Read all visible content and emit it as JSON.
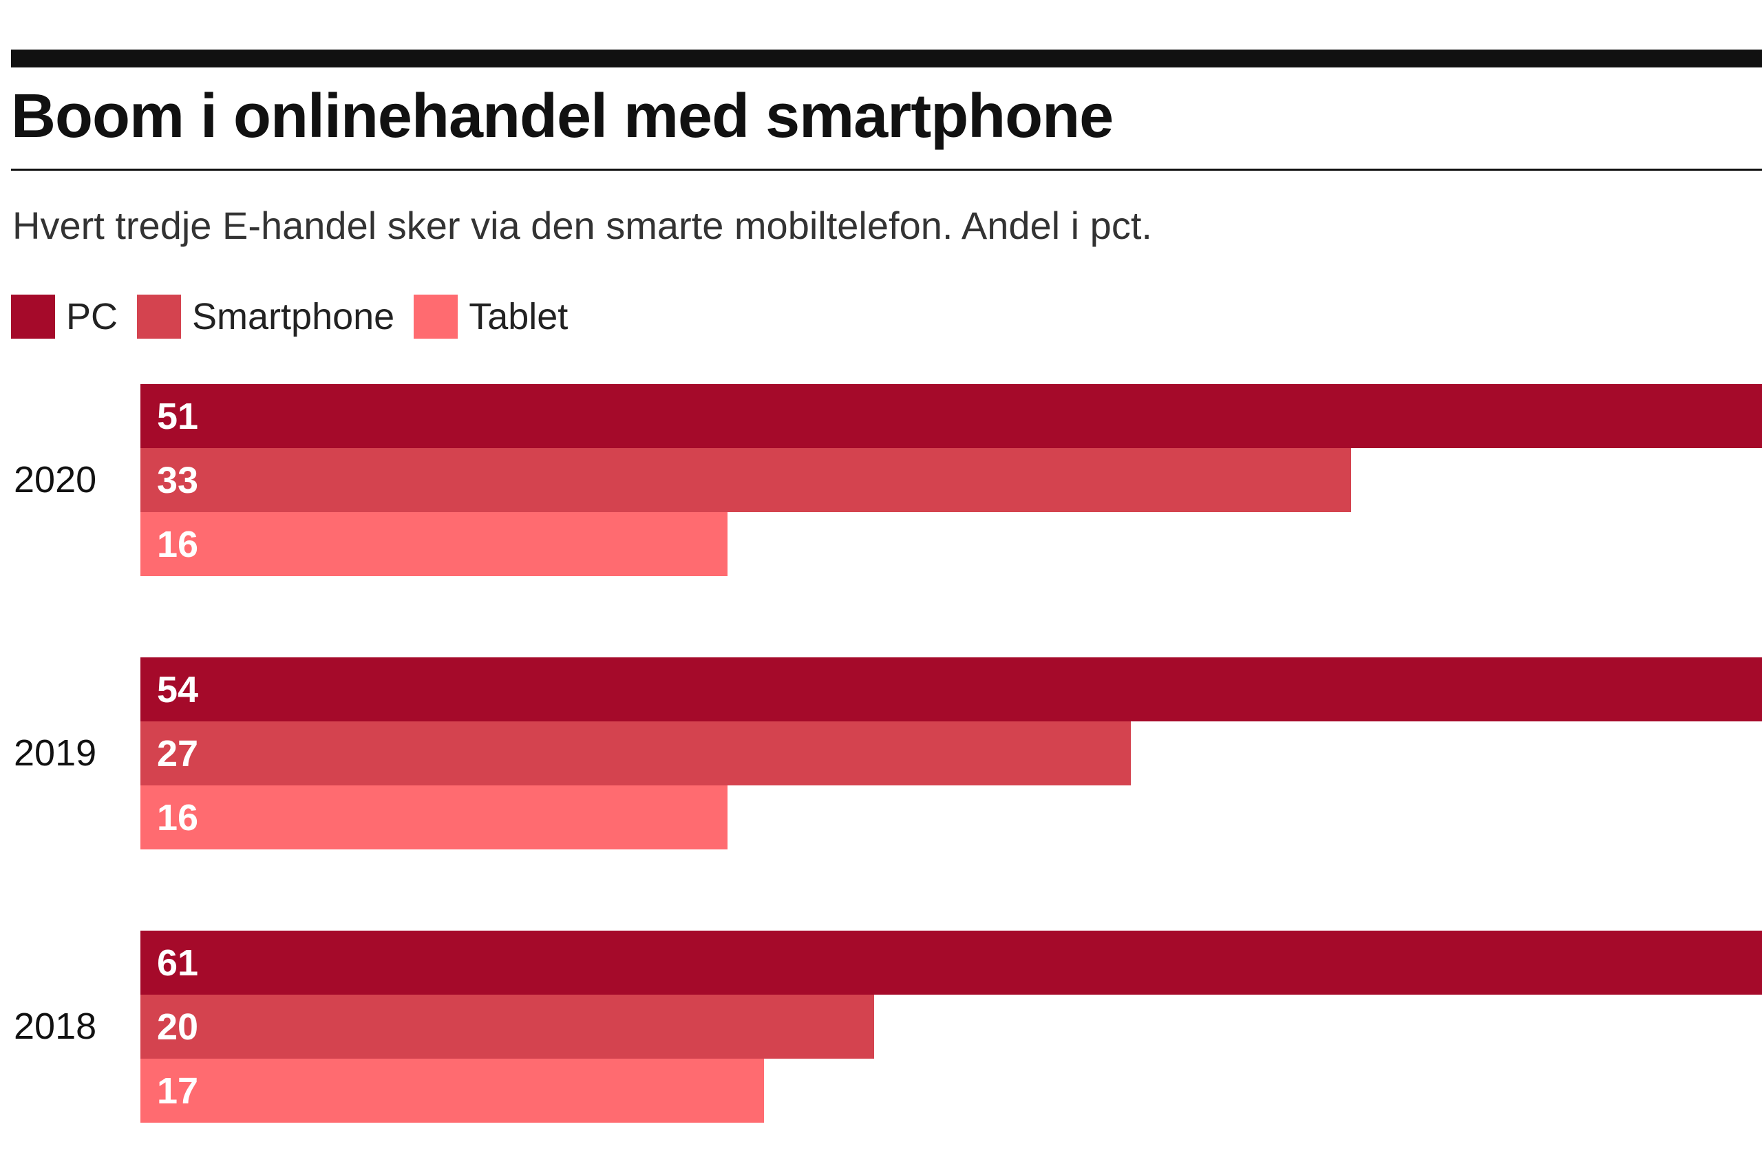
{
  "chart_data": {
    "type": "bar",
    "orientation": "horizontal",
    "title": "Boom i onlinehandel med smartphone",
    "subtitle": "Hvert tredje E-handel sker via den smarte mobiltelefon. Andel i pct.",
    "categories": [
      "2020",
      "2019",
      "2018"
    ],
    "series": [
      {
        "name": "PC",
        "color": "#a50a2a",
        "values": [
          51,
          54,
          61
        ]
      },
      {
        "name": "Smartphone",
        "color": "#d4434f",
        "values": [
          33,
          27,
          20
        ]
      },
      {
        "name": "Tablet",
        "color": "#ff6b70",
        "values": [
          16,
          16,
          17
        ]
      }
    ],
    "legend_position": "top-left",
    "grid": false,
    "data_labels": true
  }
}
